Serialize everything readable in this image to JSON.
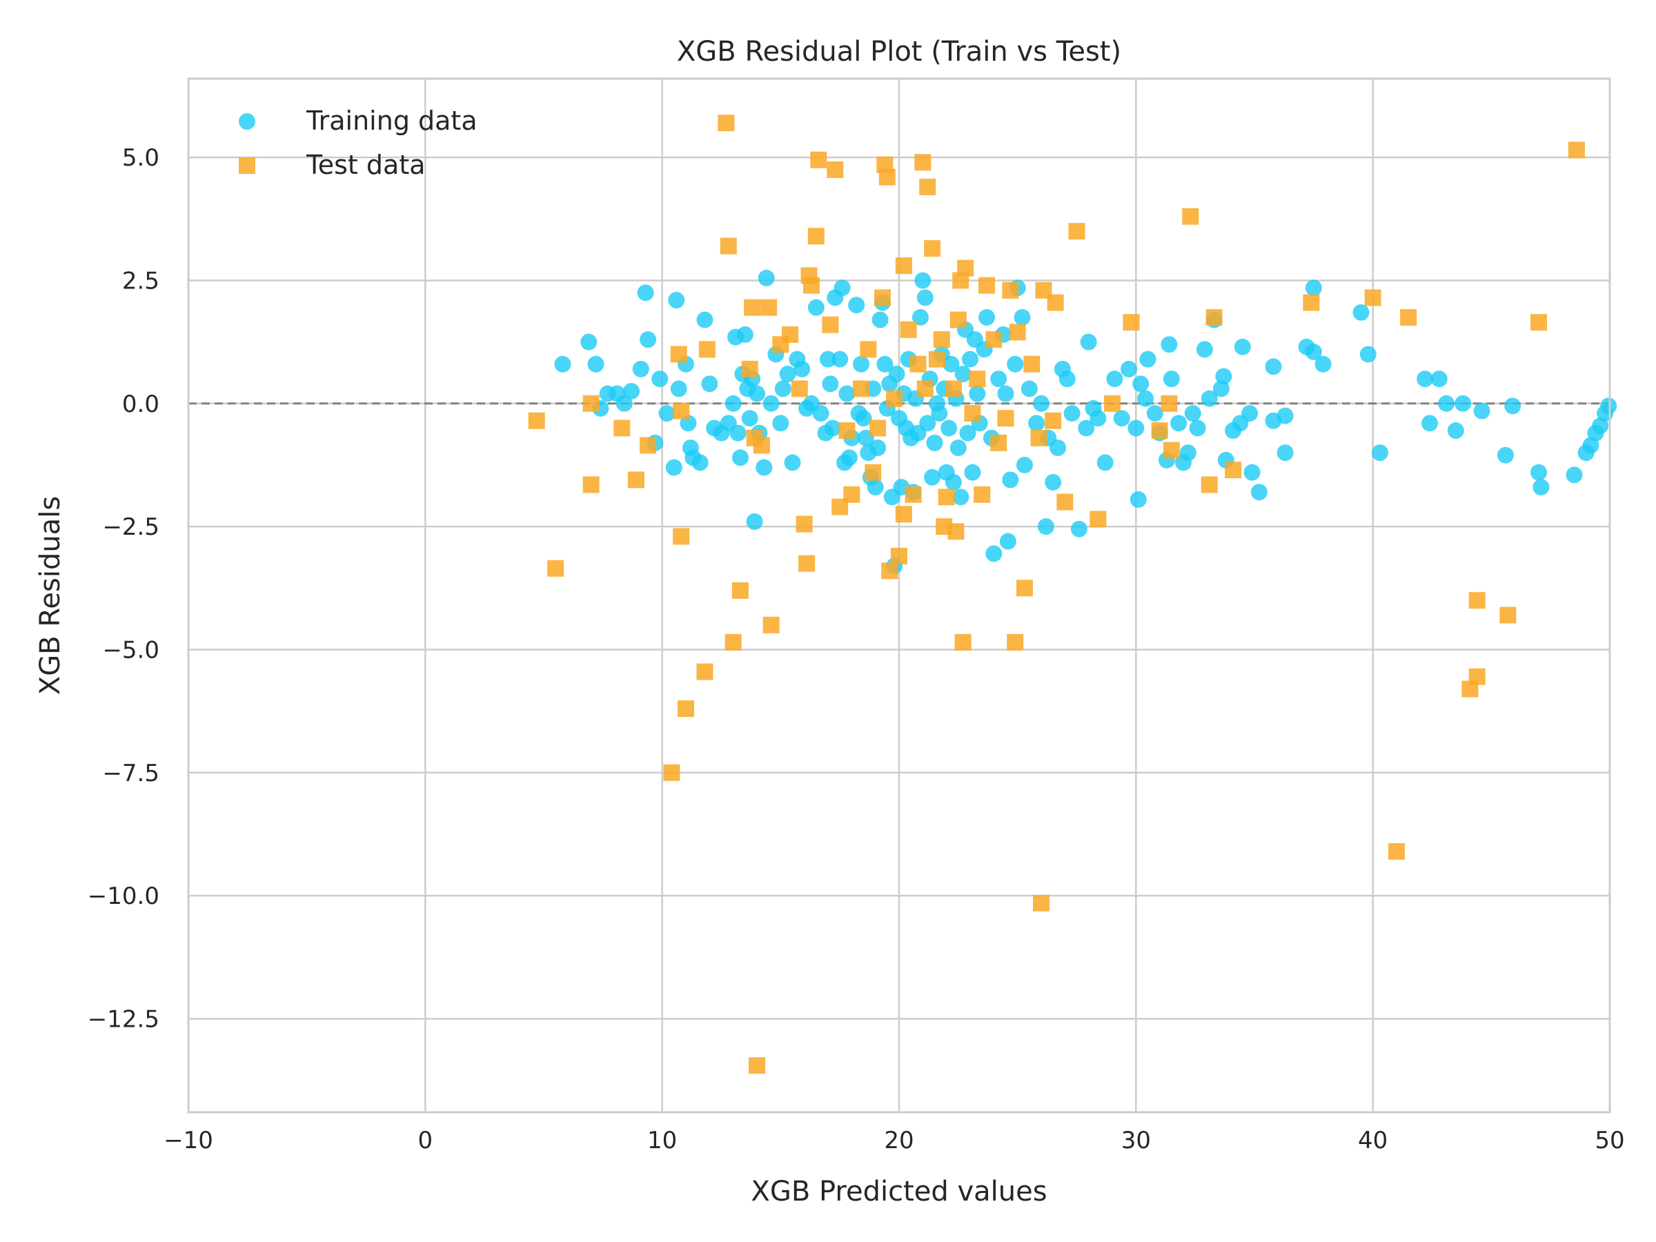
{
  "chart_data": {
    "type": "scatter",
    "title": "XGB Residual Plot (Train vs Test)",
    "xlabel": "XGB Predicted values",
    "ylabel": "XGB Residuals",
    "xlim": [
      -10,
      50
    ],
    "ylim": [
      -14.4,
      6.6
    ],
    "xticks": [
      -10,
      0,
      10,
      20,
      30,
      40,
      50
    ],
    "xtick_labels": [
      "−10",
      "0",
      "10",
      "20",
      "30",
      "40",
      "50"
    ],
    "yticks": [
      -12.5,
      -10.0,
      -7.5,
      -5.0,
      -2.5,
      0.0,
      2.5,
      5.0
    ],
    "ytick_labels": [
      "−12.5",
      "−10.0",
      "−7.5",
      "−5.0",
      "−2.5",
      "0.0",
      "2.5",
      "5.0"
    ],
    "grid": true,
    "legend_position": "top-left",
    "reference_line": {
      "y": 0,
      "style": "dashed",
      "color": "#808080"
    },
    "series": [
      {
        "name": "Training data",
        "marker": "circle",
        "color": "#1ccaf5",
        "points": [
          [
            5.8,
            0.8
          ],
          [
            6.9,
            1.25
          ],
          [
            7.2,
            0.8
          ],
          [
            7.4,
            -0.1
          ],
          [
            7.7,
            0.2
          ],
          [
            8.1,
            0.2
          ],
          [
            8.4,
            0.0
          ],
          [
            8.7,
            0.25
          ],
          [
            9.1,
            0.7
          ],
          [
            9.3,
            2.25
          ],
          [
            9.4,
            1.3
          ],
          [
            9.7,
            -0.8
          ],
          [
            9.9,
            0.5
          ],
          [
            10.2,
            -0.2
          ],
          [
            10.5,
            -1.3
          ],
          [
            10.6,
            2.1
          ],
          [
            10.7,
            0.3
          ],
          [
            11.0,
            0.8
          ],
          [
            11.1,
            -0.4
          ],
          [
            11.2,
            -0.9
          ],
          [
            11.3,
            -1.1
          ],
          [
            11.6,
            -1.2
          ],
          [
            11.8,
            1.7
          ],
          [
            12.0,
            0.4
          ],
          [
            12.2,
            -0.5
          ],
          [
            12.5,
            -0.6
          ],
          [
            12.8,
            -0.4
          ],
          [
            13.0,
            0.0
          ],
          [
            13.1,
            1.35
          ],
          [
            13.2,
            -0.6
          ],
          [
            13.3,
            -1.1
          ],
          [
            13.4,
            0.6
          ],
          [
            13.5,
            1.4
          ],
          [
            13.6,
            0.3
          ],
          [
            13.7,
            -0.3
          ],
          [
            13.8,
            0.5
          ],
          [
            13.9,
            -2.4
          ],
          [
            14.0,
            0.2
          ],
          [
            14.1,
            -0.6
          ],
          [
            14.3,
            -1.3
          ],
          [
            14.4,
            2.55
          ],
          [
            14.6,
            0.0
          ],
          [
            14.8,
            1.0
          ],
          [
            15.0,
            -0.4
          ],
          [
            15.1,
            0.3
          ],
          [
            15.3,
            0.6
          ],
          [
            15.5,
            -1.2
          ],
          [
            15.7,
            0.9
          ],
          [
            15.9,
            0.7
          ],
          [
            16.1,
            -0.1
          ],
          [
            16.3,
            0.0
          ],
          [
            16.5,
            1.95
          ],
          [
            16.7,
            -0.2
          ],
          [
            16.9,
            -0.6
          ],
          [
            17.0,
            0.9
          ],
          [
            17.1,
            0.4
          ],
          [
            17.2,
            -0.5
          ],
          [
            17.3,
            2.15
          ],
          [
            17.5,
            0.9
          ],
          [
            17.6,
            2.35
          ],
          [
            17.7,
            -1.2
          ],
          [
            17.8,
            0.2
          ],
          [
            17.9,
            -1.1
          ],
          [
            18.0,
            -0.7
          ],
          [
            18.2,
            2.0
          ],
          [
            18.3,
            -0.2
          ],
          [
            18.4,
            0.8
          ],
          [
            18.5,
            -0.3
          ],
          [
            18.6,
            -0.7
          ],
          [
            18.7,
            -1.0
          ],
          [
            18.8,
            -1.5
          ],
          [
            18.9,
            0.3
          ],
          [
            19.0,
            -1.7
          ],
          [
            19.1,
            -0.9
          ],
          [
            19.2,
            1.7
          ],
          [
            19.3,
            2.05
          ],
          [
            19.4,
            0.8
          ],
          [
            19.5,
            -0.1
          ],
          [
            19.6,
            0.4
          ],
          [
            19.7,
            -1.9
          ],
          [
            19.8,
            -3.3
          ],
          [
            19.9,
            0.6
          ],
          [
            20.0,
            -0.3
          ],
          [
            20.1,
            -1.7
          ],
          [
            20.2,
            0.2
          ],
          [
            20.3,
            -0.5
          ],
          [
            20.4,
            0.9
          ],
          [
            20.5,
            -0.7
          ],
          [
            20.6,
            -1.8
          ],
          [
            20.7,
            0.1
          ],
          [
            20.8,
            -0.6
          ],
          [
            20.9,
            1.75
          ],
          [
            21.0,
            2.5
          ],
          [
            21.1,
            2.15
          ],
          [
            21.2,
            -0.4
          ],
          [
            21.3,
            0.5
          ],
          [
            21.4,
            -1.5
          ],
          [
            21.5,
            -0.8
          ],
          [
            21.6,
            0.0
          ],
          [
            21.7,
            -0.2
          ],
          [
            21.8,
            1.0
          ],
          [
            21.9,
            0.3
          ],
          [
            22.0,
            -1.4
          ],
          [
            22.1,
            -0.5
          ],
          [
            22.2,
            0.8
          ],
          [
            22.3,
            -1.6
          ],
          [
            22.4,
            0.1
          ],
          [
            22.5,
            -0.9
          ],
          [
            22.6,
            -1.9
          ],
          [
            22.7,
            0.6
          ],
          [
            22.8,
            1.5
          ],
          [
            22.9,
            -0.6
          ],
          [
            23.0,
            0.9
          ],
          [
            23.1,
            -1.4
          ],
          [
            23.2,
            1.3
          ],
          [
            23.3,
            0.2
          ],
          [
            23.4,
            -0.4
          ],
          [
            23.6,
            1.1
          ],
          [
            23.7,
            1.75
          ],
          [
            23.9,
            -0.7
          ],
          [
            24.0,
            -3.05
          ],
          [
            24.2,
            0.5
          ],
          [
            24.4,
            1.4
          ],
          [
            24.5,
            0.2
          ],
          [
            24.6,
            -2.8
          ],
          [
            24.7,
            -1.55
          ],
          [
            24.9,
            0.8
          ],
          [
            25.0,
            2.35
          ],
          [
            25.2,
            1.75
          ],
          [
            25.3,
            -1.25
          ],
          [
            25.5,
            0.3
          ],
          [
            25.8,
            -0.4
          ],
          [
            26.0,
            0.0
          ],
          [
            26.2,
            -2.5
          ],
          [
            26.3,
            -0.7
          ],
          [
            26.5,
            -1.6
          ],
          [
            26.7,
            -0.9
          ],
          [
            26.9,
            0.7
          ],
          [
            27.1,
            0.5
          ],
          [
            27.3,
            -0.2
          ],
          [
            27.6,
            -2.55
          ],
          [
            27.9,
            -0.5
          ],
          [
            28.0,
            1.25
          ],
          [
            28.2,
            -0.1
          ],
          [
            28.4,
            -0.3
          ],
          [
            28.7,
            -1.2
          ],
          [
            29.1,
            0.5
          ],
          [
            29.4,
            -0.3
          ],
          [
            29.7,
            0.7
          ],
          [
            30.0,
            -0.5
          ],
          [
            30.1,
            -1.95
          ],
          [
            30.2,
            0.4
          ],
          [
            30.4,
            0.1
          ],
          [
            30.5,
            0.9
          ],
          [
            30.8,
            -0.2
          ],
          [
            31.0,
            -0.6
          ],
          [
            31.3,
            -1.15
          ],
          [
            31.4,
            1.2
          ],
          [
            31.5,
            0.5
          ],
          [
            31.8,
            -0.4
          ],
          [
            32.0,
            -1.2
          ],
          [
            32.2,
            -1.0
          ],
          [
            32.4,
            -0.2
          ],
          [
            32.6,
            -0.5
          ],
          [
            32.9,
            1.1
          ],
          [
            33.1,
            0.1
          ],
          [
            33.3,
            1.7
          ],
          [
            33.6,
            0.3
          ],
          [
            33.7,
            0.55
          ],
          [
            33.8,
            -1.15
          ],
          [
            34.1,
            -0.55
          ],
          [
            34.4,
            -0.4
          ],
          [
            34.5,
            1.15
          ],
          [
            34.8,
            -0.2
          ],
          [
            34.9,
            -1.4
          ],
          [
            35.2,
            -1.8
          ],
          [
            35.8,
            0.75
          ],
          [
            35.8,
            -0.35
          ],
          [
            36.3,
            -0.25
          ],
          [
            36.3,
            -1.0
          ],
          [
            37.2,
            1.15
          ],
          [
            37.5,
            2.35
          ],
          [
            37.5,
            1.05
          ],
          [
            37.9,
            0.8
          ],
          [
            39.5,
            1.85
          ],
          [
            39.8,
            1.0
          ],
          [
            40.3,
            -1.0
          ],
          [
            42.2,
            0.5
          ],
          [
            42.4,
            -0.4
          ],
          [
            42.8,
            0.5
          ],
          [
            43.1,
            0.0
          ],
          [
            43.5,
            -0.55
          ],
          [
            43.8,
            0.0
          ],
          [
            44.6,
            -0.15
          ],
          [
            45.6,
            -1.05
          ],
          [
            45.9,
            -0.05
          ],
          [
            47.0,
            -1.4
          ],
          [
            47.1,
            -1.7
          ],
          [
            48.5,
            -1.45
          ],
          [
            49.0,
            -1.0
          ],
          [
            49.2,
            -0.85
          ],
          [
            49.4,
            -0.6
          ],
          [
            49.6,
            -0.45
          ],
          [
            49.8,
            -0.2
          ],
          [
            49.95,
            -0.05
          ]
        ]
      },
      {
        "name": "Test data",
        "marker": "square",
        "color": "#f9a825",
        "points": [
          [
            4.7,
            -0.35
          ],
          [
            5.5,
            -3.35
          ],
          [
            7.0,
            0.0
          ],
          [
            7.0,
            -1.65
          ],
          [
            8.3,
            -0.5
          ],
          [
            8.9,
            -1.55
          ],
          [
            9.4,
            -0.85
          ],
          [
            10.4,
            -7.5
          ],
          [
            10.7,
            1.0
          ],
          [
            10.8,
            -2.7
          ],
          [
            10.8,
            -0.15
          ],
          [
            11.0,
            -6.2
          ],
          [
            11.8,
            -5.45
          ],
          [
            11.9,
            1.1
          ],
          [
            12.7,
            5.7
          ],
          [
            12.8,
            3.2
          ],
          [
            13.0,
            -4.85
          ],
          [
            13.3,
            -3.8
          ],
          [
            13.7,
            0.7
          ],
          [
            13.8,
            1.95
          ],
          [
            13.9,
            -0.7
          ],
          [
            14.0,
            -13.45
          ],
          [
            14.2,
            -0.85
          ],
          [
            14.5,
            1.95
          ],
          [
            14.6,
            -4.5
          ],
          [
            15.0,
            1.2
          ],
          [
            15.4,
            1.4
          ],
          [
            15.8,
            0.3
          ],
          [
            16.0,
            -2.45
          ],
          [
            16.1,
            -3.25
          ],
          [
            16.2,
            2.6
          ],
          [
            16.3,
            2.4
          ],
          [
            16.5,
            3.4
          ],
          [
            16.6,
            4.95
          ],
          [
            17.1,
            1.6
          ],
          [
            17.3,
            4.75
          ],
          [
            17.5,
            -2.1
          ],
          [
            17.8,
            -0.55
          ],
          [
            18.0,
            -1.85
          ],
          [
            18.4,
            0.3
          ],
          [
            18.7,
            1.1
          ],
          [
            18.9,
            -1.4
          ],
          [
            19.1,
            -0.5
          ],
          [
            19.3,
            2.15
          ],
          [
            19.4,
            4.85
          ],
          [
            19.5,
            4.6
          ],
          [
            19.6,
            -3.4
          ],
          [
            19.8,
            0.1
          ],
          [
            20.0,
            -3.1
          ],
          [
            20.2,
            2.8
          ],
          [
            20.2,
            -2.25
          ],
          [
            20.4,
            1.5
          ],
          [
            20.6,
            -1.85
          ],
          [
            20.8,
            0.8
          ],
          [
            21.0,
            4.9
          ],
          [
            21.1,
            0.3
          ],
          [
            21.2,
            4.4
          ],
          [
            21.4,
            3.15
          ],
          [
            21.6,
            0.9
          ],
          [
            21.8,
            1.3
          ],
          [
            21.9,
            -2.5
          ],
          [
            22.0,
            -1.9
          ],
          [
            22.3,
            0.3
          ],
          [
            22.4,
            -2.6
          ],
          [
            22.5,
            1.7
          ],
          [
            22.6,
            2.5
          ],
          [
            22.7,
            -4.85
          ],
          [
            22.8,
            2.75
          ],
          [
            23.1,
            -0.2
          ],
          [
            23.3,
            0.5
          ],
          [
            23.5,
            -1.85
          ],
          [
            23.7,
            2.4
          ],
          [
            24.0,
            1.3
          ],
          [
            24.2,
            -0.8
          ],
          [
            24.5,
            -0.3
          ],
          [
            24.7,
            2.3
          ],
          [
            24.9,
            -4.85
          ],
          [
            25.0,
            1.45
          ],
          [
            25.3,
            -3.75
          ],
          [
            25.6,
            0.8
          ],
          [
            25.9,
            -0.7
          ],
          [
            26.0,
            -10.15
          ],
          [
            26.1,
            2.3
          ],
          [
            26.5,
            -0.35
          ],
          [
            26.6,
            2.05
          ],
          [
            27.0,
            -2.0
          ],
          [
            27.5,
            3.5
          ],
          [
            28.4,
            -2.35
          ],
          [
            29.0,
            0.0
          ],
          [
            29.8,
            1.65
          ],
          [
            31.0,
            -0.55
          ],
          [
            31.4,
            0.0
          ],
          [
            31.5,
            -0.95
          ],
          [
            32.3,
            3.8
          ],
          [
            33.1,
            -1.65
          ],
          [
            33.3,
            1.75
          ],
          [
            34.1,
            -1.35
          ],
          [
            37.4,
            2.05
          ],
          [
            40.0,
            2.15
          ],
          [
            41.0,
            -9.1
          ],
          [
            41.5,
            1.75
          ],
          [
            44.1,
            -5.8
          ],
          [
            44.4,
            -5.55
          ],
          [
            44.4,
            -4.0
          ],
          [
            45.7,
            -4.3
          ],
          [
            47.0,
            1.65
          ],
          [
            48.6,
            5.15
          ]
        ]
      }
    ]
  }
}
